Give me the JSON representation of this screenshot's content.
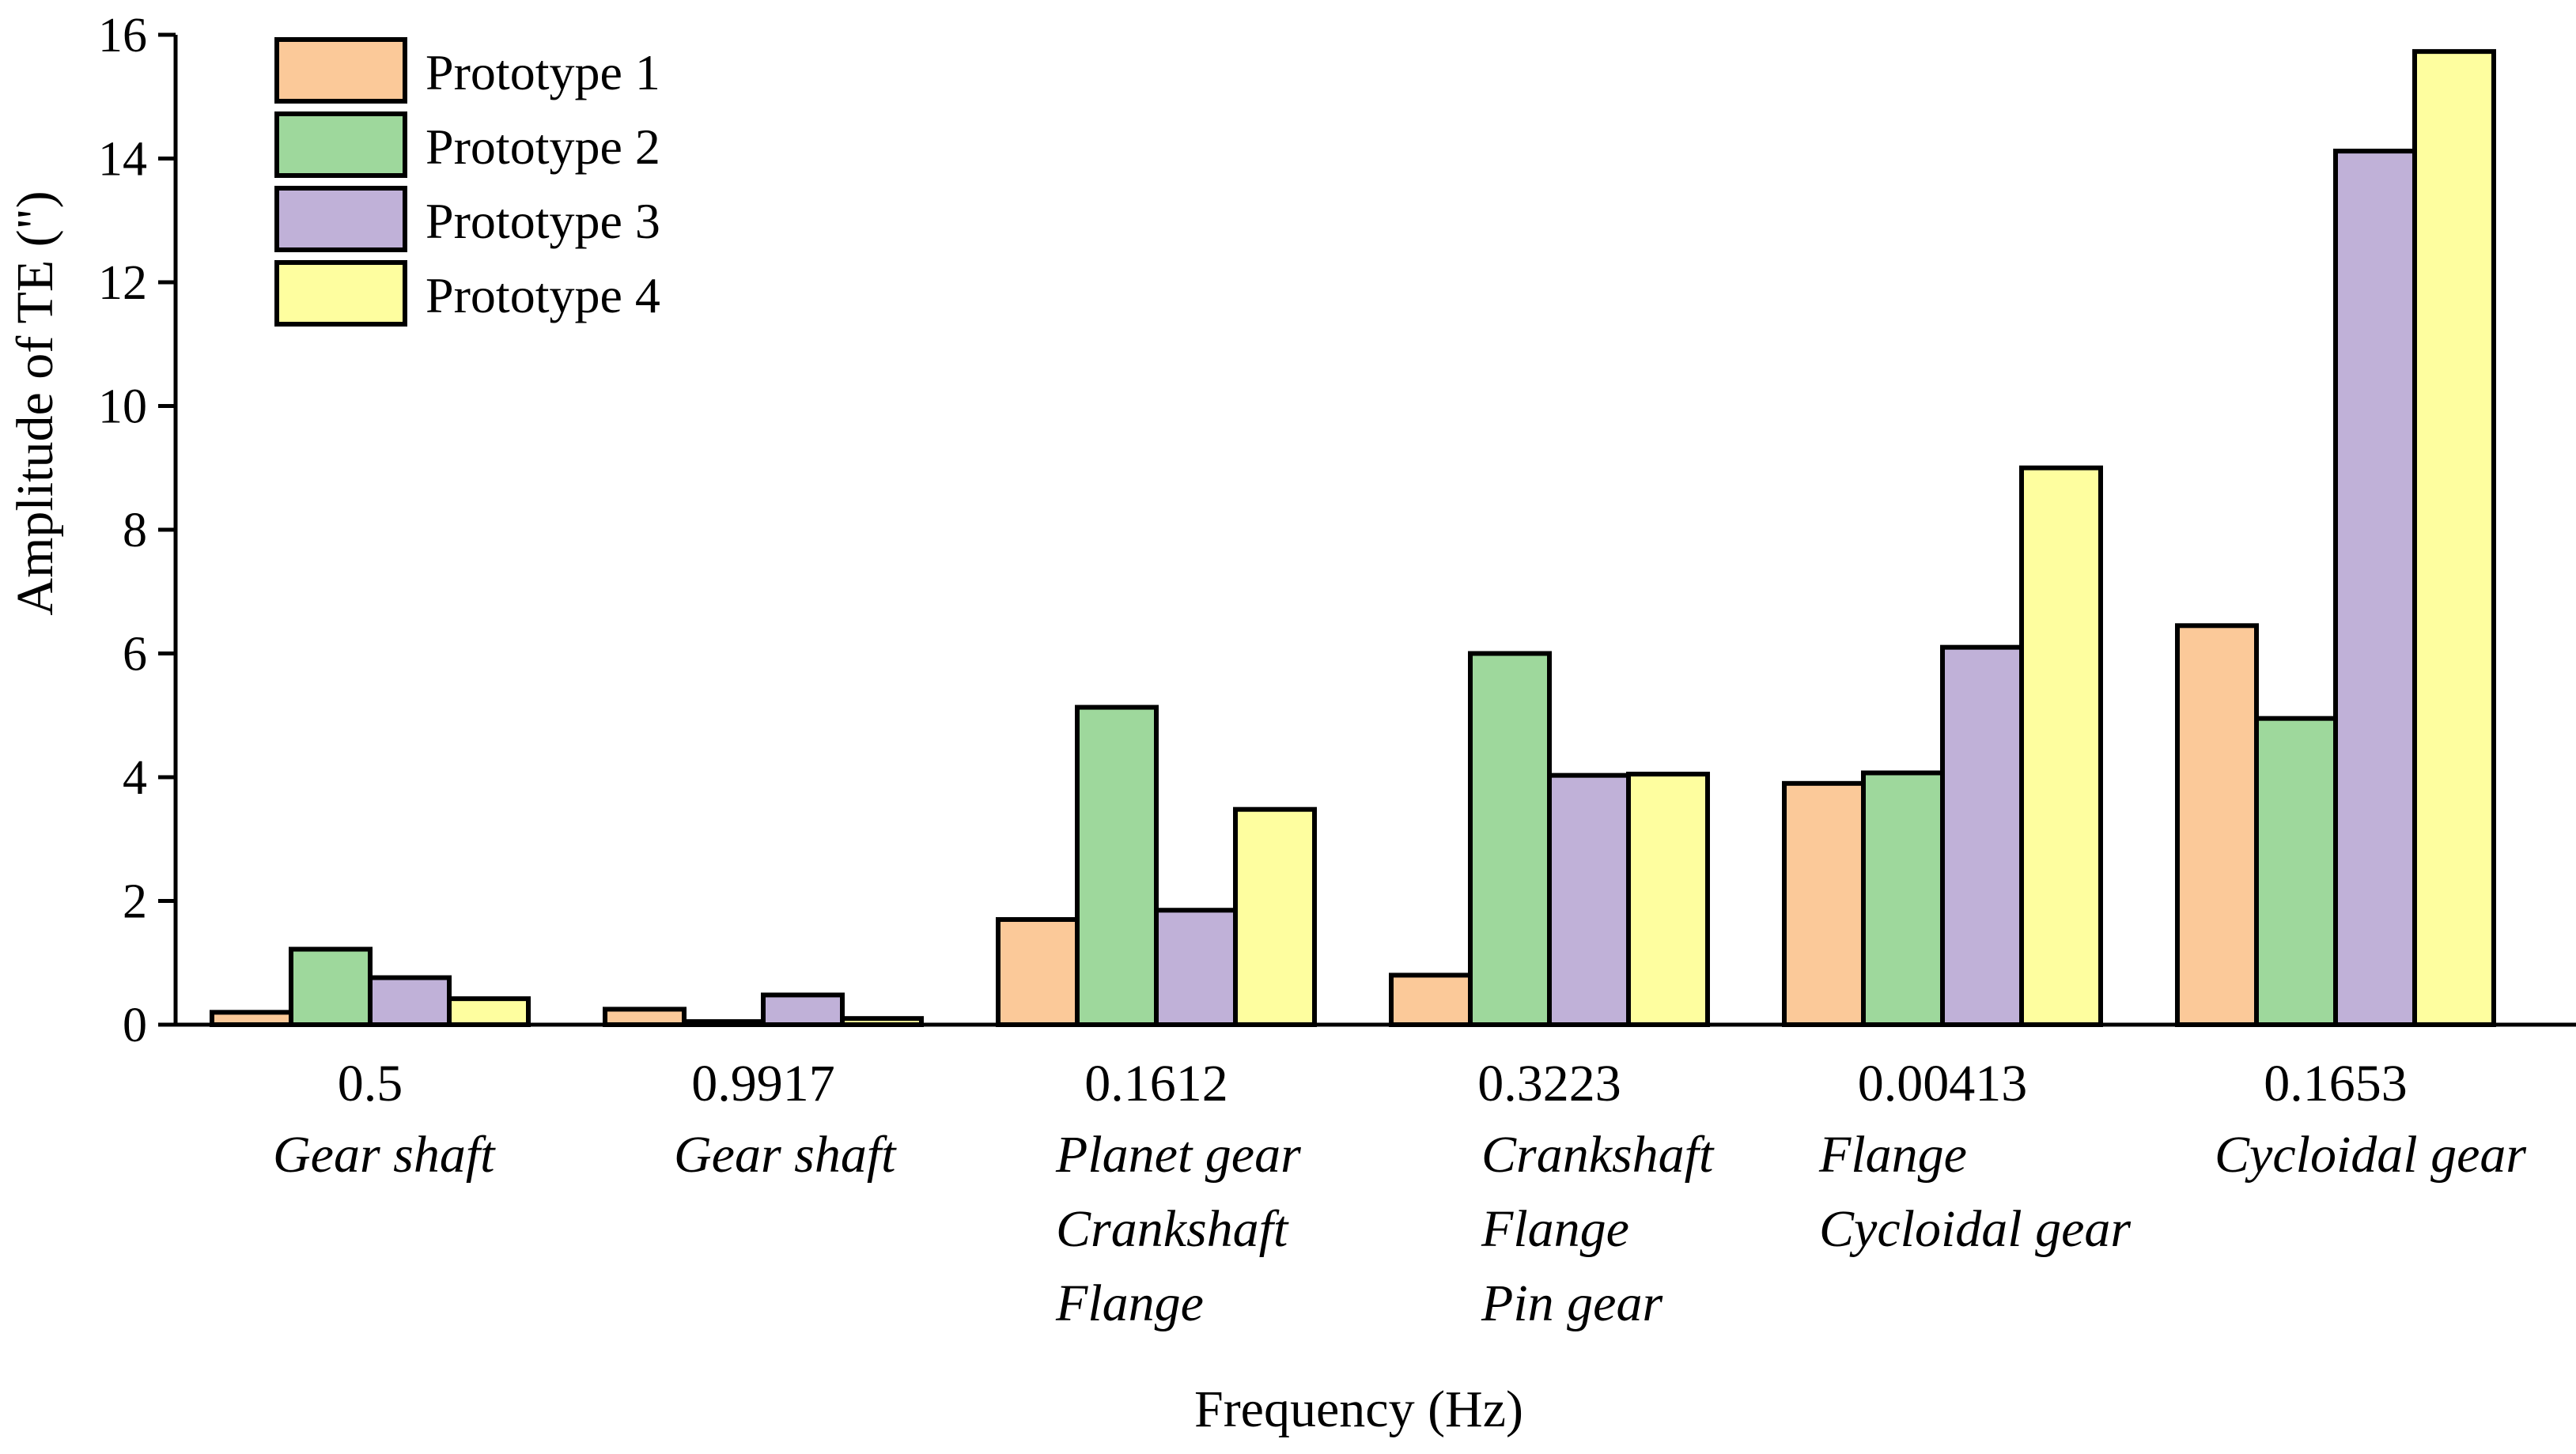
{
  "chart_data": {
    "type": "bar",
    "title": "",
    "xlabel": "Frequency (Hz)",
    "ylabel": "Amplitude of TE (\")",
    "ylim": [
      0,
      16
    ],
    "yticks": [
      0,
      2,
      4,
      6,
      8,
      10,
      12,
      14,
      16
    ],
    "legend_position": "top-left",
    "categories": [
      {
        "frequency": "0.5",
        "components": [
          "Gear shaft"
        ]
      },
      {
        "frequency": "0.9917",
        "components": [
          "Gear shaft"
        ]
      },
      {
        "frequency": "0.1612",
        "components": [
          "Planet gear",
          "Crankshaft",
          "Flange"
        ]
      },
      {
        "frequency": "0.3223",
        "components": [
          "Crankshaft",
          "Flange",
          "Pin gear"
        ]
      },
      {
        "frequency": "0.00413",
        "components": [
          "Flange",
          "Cycloidal gear"
        ]
      },
      {
        "frequency": "0.1653",
        "components": [
          "Cycloidal gear"
        ]
      }
    ],
    "series": [
      {
        "name": "Prototype 1",
        "color": "#FBC999",
        "values": [
          0.2,
          0.25,
          1.7,
          0.8,
          3.9,
          6.45
        ]
      },
      {
        "name": "Prototype 2",
        "color": "#9ED89C",
        "values": [
          1.22,
          0.05,
          5.13,
          6.0,
          4.07,
          4.95
        ]
      },
      {
        "name": "Prototype 3",
        "color": "#C0B1D8",
        "values": [
          0.76,
          0.48,
          1.85,
          4.03,
          6.1,
          14.12
        ]
      },
      {
        "name": "Prototype 4",
        "color": "#FEFE9F",
        "values": [
          0.42,
          0.1,
          3.48,
          4.05,
          9.0,
          15.73
        ]
      }
    ]
  }
}
